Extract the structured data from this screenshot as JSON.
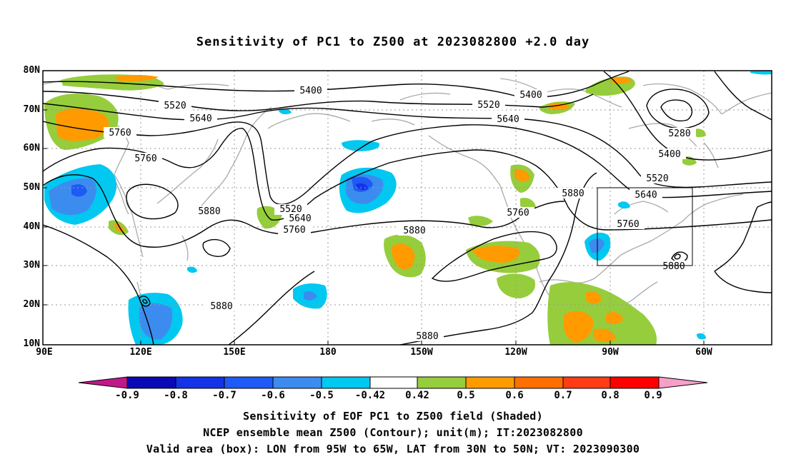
{
  "title": "Sensitivity of PC1 to Z500 at 2023082800 +2.0 day",
  "lat_labels": [
    "80N",
    "70N",
    "60N",
    "50N",
    "40N",
    "30N",
    "20N",
    "10N"
  ],
  "lon_labels": [
    "90E",
    "120E",
    "150E",
    "180",
    "150W",
    "120W",
    "90W",
    "60W"
  ],
  "contour_labels": [
    "5400",
    "5520",
    "5640",
    "5760",
    "5760",
    "5400",
    "5520",
    "5640",
    "5280",
    "5400",
    "5520",
    "5640",
    "5760",
    "5880",
    "5880",
    "5880",
    "5880",
    "5520",
    "5640",
    "5760",
    "5760",
    "5880",
    "5880"
  ],
  "colorbar": {
    "ticks": [
      "-0.9",
      "-0.8",
      "-0.7",
      "-0.6",
      "-0.5",
      "-0.42",
      "0.42",
      "0.5",
      "0.6",
      "0.7",
      "0.8",
      "0.9"
    ],
    "colors": [
      "#c0188a",
      "#0a0ab4",
      "#1432e6",
      "#1e5af5",
      "#3c8cf0",
      "#00c8f0",
      "#ffffff",
      "#96cd3c",
      "#ff9b00",
      "#ff6e00",
      "#ff3c14",
      "#ff0000",
      "#f5a0c8"
    ]
  },
  "valid_box": {
    "lon_from": "95W",
    "lon_to": "65W",
    "lat_from": "30N",
    "lat_to": "50N"
  },
  "footer": {
    "line1": "Sensitivity of EOF PC1 to Z500 field (Shaded)",
    "line2": "NCEP ensemble mean Z500 (Contour); unit(m); IT:2023082800",
    "line3": "Valid area (box): LON from 95W to 65W, LAT from 30N to 50N; VT: 2023090300"
  }
}
